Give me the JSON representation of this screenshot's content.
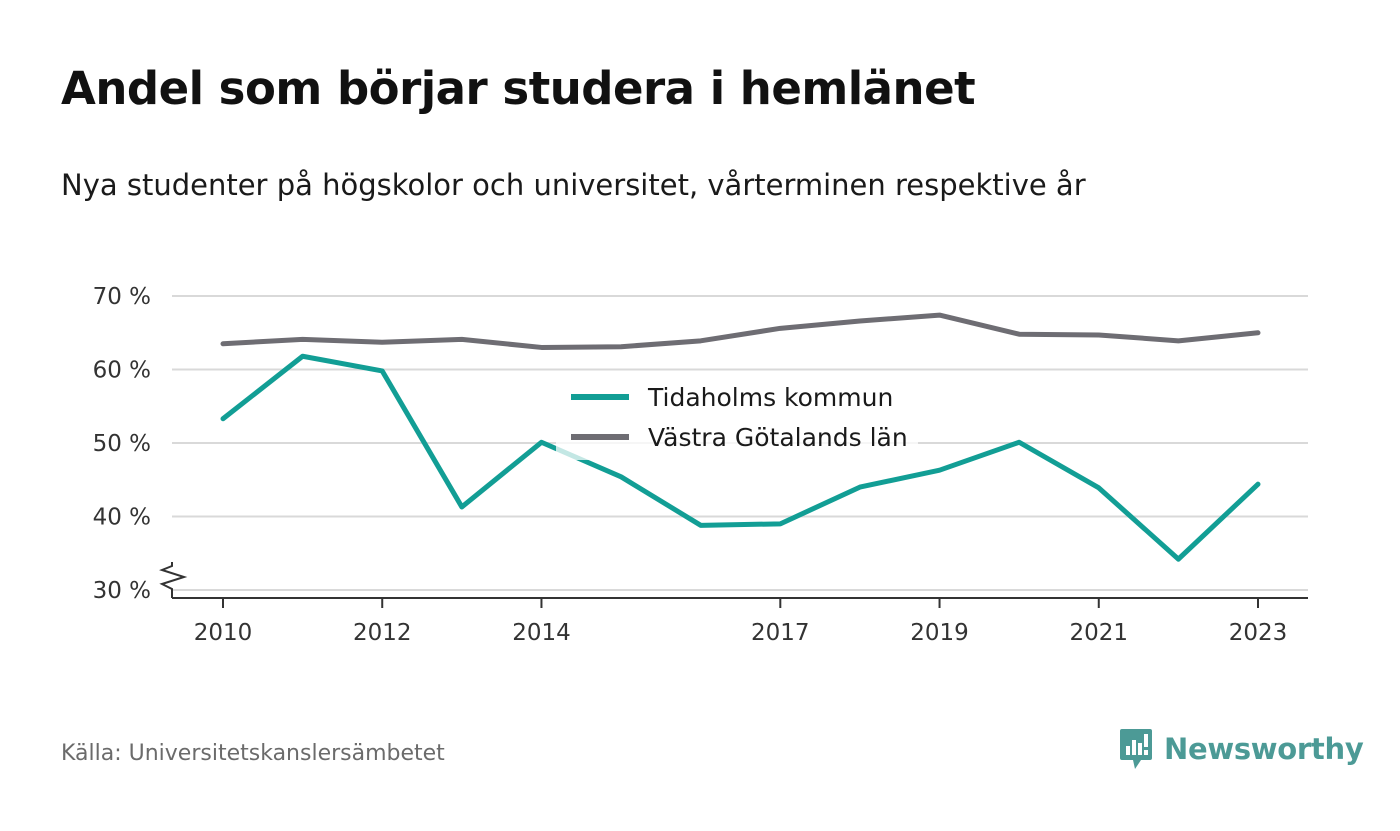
{
  "header": {
    "title": "Andel som börjar studera i hemlänet",
    "subtitle": "Nya studenter på högskolor och universitet, vårterminen respektive år"
  },
  "footer": {
    "source": "Källa: Universitetskanslersämbetet",
    "brand": "Newsworthy",
    "brand_icon": "bar-chart-speech-bubble-icon"
  },
  "colors": {
    "series_1": "#129e95",
    "series_2": "#6e6d73",
    "grid": "#d9d9d9",
    "axis": "#333333",
    "brand": "#4c9a96"
  },
  "chart_data": {
    "type": "line",
    "x": [
      2010,
      2011,
      2012,
      2013,
      2014,
      2015,
      2016,
      2017,
      2018,
      2019,
      2020,
      2021,
      2022,
      2023
    ],
    "x_ticks": [
      "2010",
      "2012",
      "2014",
      "2017",
      "2019",
      "2021",
      "2023"
    ],
    "y_ticks": [
      {
        "value": 30,
        "label": "30 %"
      },
      {
        "value": 40,
        "label": "40 %"
      },
      {
        "value": 50,
        "label": "50 %"
      },
      {
        "value": 60,
        "label": "60 %"
      },
      {
        "value": 70,
        "label": "70 %"
      }
    ],
    "ylim": [
      30,
      70
    ],
    "y_axis_break": true,
    "grid": true,
    "legend_position": "center",
    "series": [
      {
        "name": "Tidaholms kommun",
        "color": "#129e95",
        "values": [
          53.3,
          61.8,
          59.8,
          41.3,
          50.1,
          45.4,
          38.8,
          39.0,
          44.0,
          46.3,
          50.1,
          43.9,
          34.2,
          44.4
        ]
      },
      {
        "name": "Västra Götalands län",
        "color": "#6e6d73",
        "values": [
          63.5,
          64.1,
          63.7,
          64.1,
          63.0,
          63.1,
          63.9,
          65.6,
          66.6,
          67.4,
          64.8,
          64.7,
          63.9,
          65.0
        ]
      }
    ]
  }
}
